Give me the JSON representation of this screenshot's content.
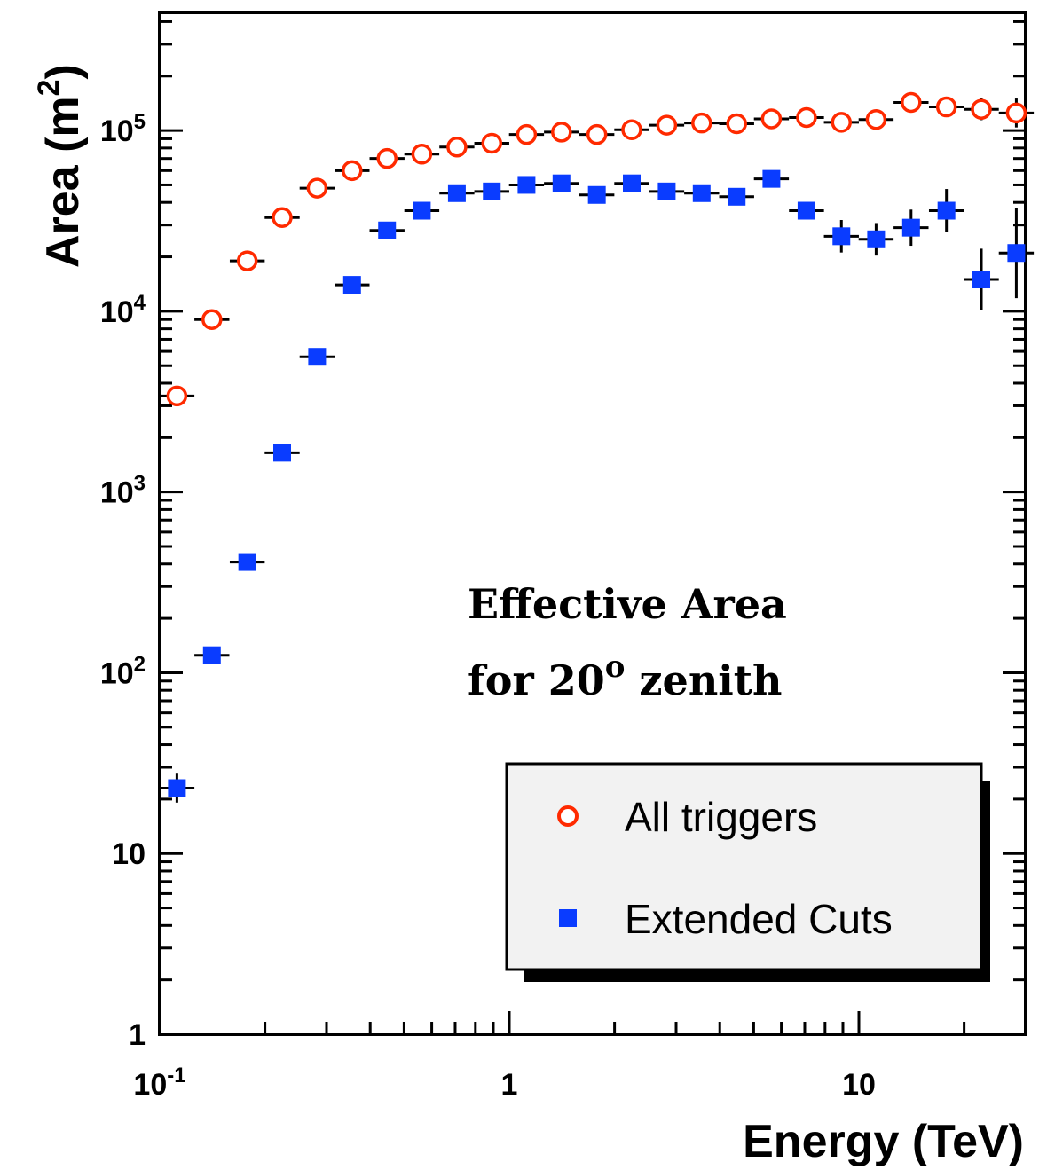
{
  "chart_data": {
    "type": "scatter",
    "xlabel": "Energy (TeV)",
    "ylabel": "Area (m",
    "ylabel_sup": "2",
    "ylabel_close": ")",
    "xscale": "log",
    "yscale": "log",
    "xlim": [
      0.1,
      30
    ],
    "ylim": [
      1,
      450000
    ],
    "x_ticks": [
      {
        "value": 0.1,
        "base": "10",
        "sup": "-1"
      },
      {
        "value": 1,
        "base": "1",
        "sup": ""
      },
      {
        "value": 10,
        "base": "10",
        "sup": ""
      }
    ],
    "y_ticks": [
      {
        "value": 1,
        "base": "1",
        "sup": ""
      },
      {
        "value": 10,
        "base": "10",
        "sup": ""
      },
      {
        "value": 100,
        "base": "10",
        "sup": "2"
      },
      {
        "value": 1000,
        "base": "10",
        "sup": "3"
      },
      {
        "value": 10000,
        "base": "10",
        "sup": "4"
      },
      {
        "value": 100000,
        "base": "10",
        "sup": "5"
      }
    ],
    "annotation": {
      "line1": "Effective Area",
      "line2_prefix": "for 20",
      "line2_sup": "o",
      "line2_suffix": " zenith"
    },
    "legend_position": "bottom-right",
    "series": [
      {
        "name": "All triggers",
        "marker": "open-circle",
        "color": "#ff2a00",
        "x": [
          0.112,
          0.141,
          0.178,
          0.224,
          0.282,
          0.355,
          0.447,
          0.562,
          0.708,
          0.891,
          1.12,
          1.41,
          1.78,
          2.24,
          2.82,
          3.55,
          4.47,
          5.62,
          7.08,
          8.91,
          11.2,
          14.1,
          17.8,
          22.4,
          28.2
        ],
        "y": [
          3400,
          9000,
          19000,
          33000,
          48000,
          60000,
          70000,
          74000,
          81000,
          85000,
          95000,
          98000,
          95000,
          101000,
          107000,
          110000,
          109000,
          116000,
          118000,
          111000,
          115000,
          143000,
          135000,
          131000,
          125000
        ],
        "yerr": [
          null,
          null,
          null,
          null,
          null,
          null,
          null,
          null,
          null,
          null,
          null,
          null,
          null,
          null,
          null,
          null,
          null,
          null,
          null,
          null,
          null,
          null,
          null,
          0.06,
          0.08
        ]
      },
      {
        "name": "Extended Cuts",
        "marker": "filled-square",
        "color": "#0a3cff",
        "x": [
          0.112,
          0.141,
          0.178,
          0.224,
          0.282,
          0.355,
          0.447,
          0.562,
          0.708,
          0.891,
          1.12,
          1.41,
          1.78,
          2.24,
          2.82,
          3.55,
          4.47,
          5.62,
          7.08,
          8.91,
          11.2,
          14.1,
          17.8,
          22.4,
          28.2
        ],
        "y": [
          23,
          125,
          410,
          1650,
          5600,
          14000,
          28000,
          36000,
          45000,
          46000,
          50000,
          51000,
          44000,
          51000,
          46000,
          45000,
          43000,
          54000,
          36000,
          26000,
          25000,
          29000,
          36000,
          15000,
          21000
        ],
        "yerr": [
          0.08,
          null,
          null,
          null,
          null,
          null,
          null,
          null,
          null,
          null,
          null,
          null,
          null,
          null,
          null,
          null,
          null,
          null,
          null,
          0.09,
          0.09,
          0.1,
          0.12,
          0.17,
          0.25
        ]
      }
    ]
  }
}
